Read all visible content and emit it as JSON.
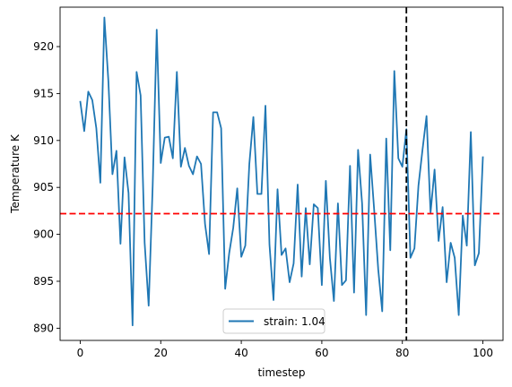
{
  "chart_data": {
    "type": "line",
    "xlabel": "timestep",
    "ylabel": "Temperature K",
    "xlim": [
      -5,
      105
    ],
    "ylim": [
      888.7,
      924.2
    ],
    "xticks": [
      0,
      20,
      40,
      60,
      80,
      100
    ],
    "yticks": [
      890,
      895,
      900,
      905,
      910,
      915,
      920
    ],
    "grid": false,
    "legend_position": "bottom-center",
    "series": [
      {
        "name": "strain: 1.04",
        "color": "#1f77b4",
        "x": [
          0,
          1,
          2,
          3,
          4,
          5,
          6,
          7,
          8,
          9,
          10,
          11,
          12,
          13,
          14,
          15,
          16,
          17,
          18,
          19,
          20,
          21,
          22,
          23,
          24,
          25,
          26,
          27,
          28,
          29,
          30,
          31,
          32,
          33,
          34,
          35,
          36,
          37,
          38,
          39,
          40,
          41,
          42,
          43,
          44,
          45,
          46,
          47,
          48,
          49,
          50,
          51,
          52,
          53,
          54,
          55,
          56,
          57,
          58,
          59,
          60,
          61,
          62,
          63,
          64,
          65,
          66,
          67,
          68,
          69,
          70,
          71,
          72,
          73,
          74,
          75,
          76,
          77,
          78,
          79,
          80,
          81,
          82,
          83,
          84,
          85,
          86,
          87,
          88,
          89,
          90,
          91,
          92,
          93,
          94,
          95,
          96,
          97,
          98,
          99,
          100
        ],
        "values": [
          914.2,
          911.0,
          915.2,
          914.3,
          911.3,
          905.5,
          923.1,
          916.3,
          906.4,
          908.9,
          899.0,
          908.2,
          904.4,
          890.3,
          917.3,
          914.8,
          899.1,
          892.4,
          905.2,
          921.8,
          907.6,
          910.3,
          910.4,
          908.1,
          917.3,
          907.2,
          909.2,
          907.3,
          906.4,
          908.3,
          907.5,
          901.1,
          897.9,
          913.0,
          913.0,
          911.3,
          894.2,
          898.0,
          900.7,
          904.9,
          897.6,
          898.8,
          907.5,
          912.5,
          904.3,
          904.3,
          913.7,
          898.9,
          893.0,
          904.8,
          897.8,
          898.5,
          894.9,
          896.9,
          905.3,
          895.5,
          902.8,
          896.8,
          903.2,
          902.8,
          894.6,
          905.7,
          897.5,
          892.9,
          903.3,
          894.6,
          895.1,
          907.3,
          893.8,
          909.0,
          903.3,
          891.4,
          908.5,
          902.6,
          896.3,
          891.8,
          910.2,
          898.3,
          917.4,
          908.1,
          907.2,
          911.2,
          897.5,
          898.5,
          905.2,
          909.0,
          912.6,
          902.3,
          906.9,
          899.3,
          902.9,
          894.9,
          899.1,
          897.5,
          891.4,
          902.0,
          898.8,
          910.9,
          896.7,
          898.0,
          908.3
        ]
      }
    ],
    "reference_lines": [
      {
        "orientation": "horizontal",
        "value": 902.2,
        "color": "#ff0000",
        "style": "dashed"
      },
      {
        "orientation": "vertical",
        "value": 81,
        "color": "#000000",
        "style": "dashed"
      }
    ]
  }
}
